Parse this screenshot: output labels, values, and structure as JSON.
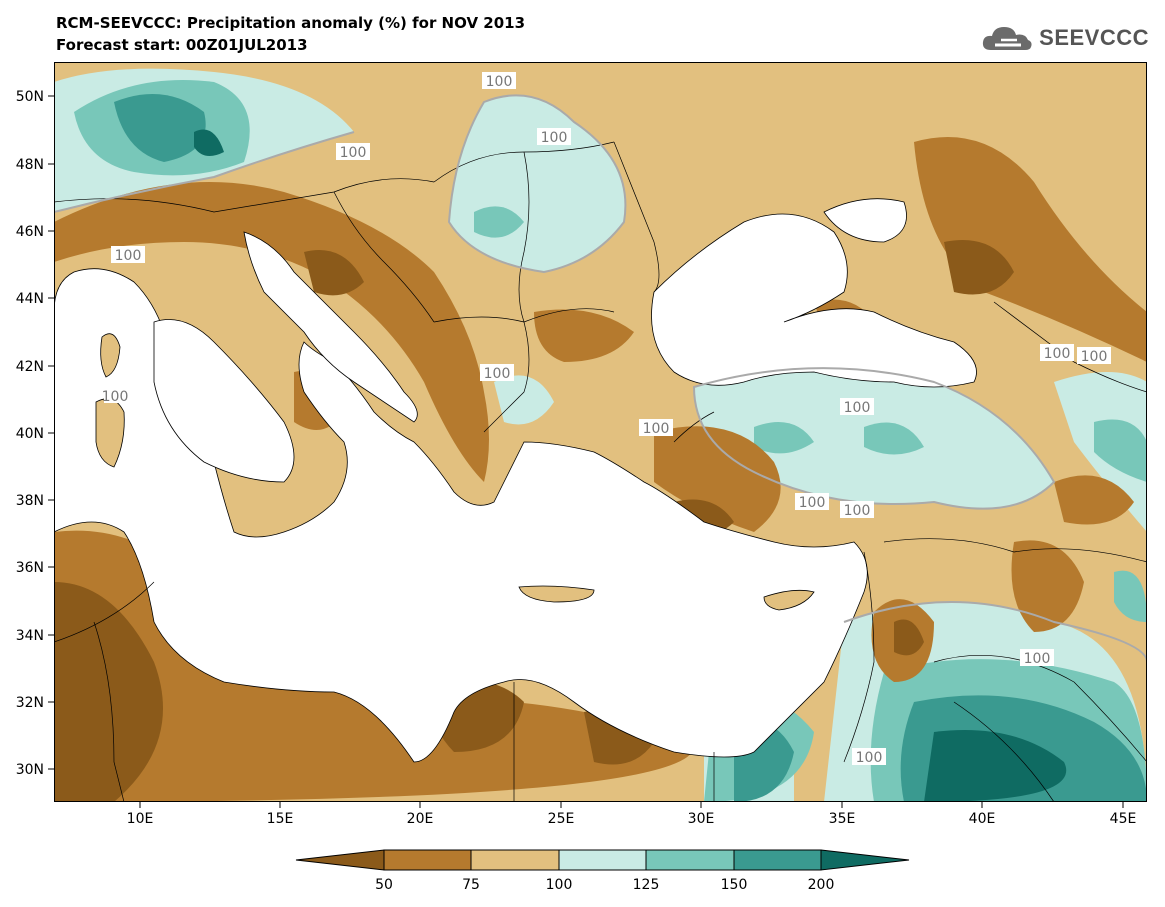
{
  "header": {
    "title": "RCM-SEEVCCC: Precipitation anomaly (%) for NOV 2013",
    "subtitle": "Forecast start: 00Z01JUL2013"
  },
  "logo": {
    "text": "SEEVCCC",
    "icon": "cloud-icon"
  },
  "map": {
    "lat_labels": [
      "50N",
      "48N",
      "46N",
      "44N",
      "42N",
      "40N",
      "38N",
      "36N",
      "34N",
      "32N",
      "30N"
    ],
    "lon_labels": [
      "10E",
      "15E",
      "20E",
      "25E",
      "30E",
      "35E",
      "40E",
      "45E"
    ],
    "contour_labels": [
      "100",
      "100",
      "100",
      "100",
      "100",
      "100",
      "100",
      "100",
      "100",
      "100",
      "100",
      "100",
      "100",
      "100"
    ]
  },
  "legend": {
    "labels": [
      "50",
      "75",
      "100",
      "125",
      "150",
      "200"
    ],
    "colors": [
      "#8b5a1a",
      "#b57a2e",
      "#e2c07f",
      "#c9ebe4",
      "#78c7b9",
      "#3a9a90",
      "#0f6b62"
    ]
  }
}
